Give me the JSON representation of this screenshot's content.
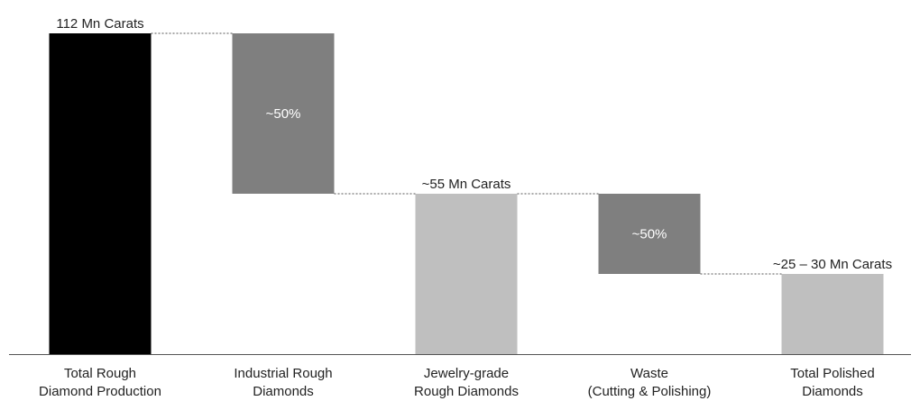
{
  "chart_data": {
    "type": "bar",
    "subtype": "waterfall",
    "categories": [
      [
        "Total Rough",
        "Diamond Production"
      ],
      [
        "Industrial Rough",
        "Diamonds"
      ],
      [
        "Jewelry-grade",
        "Rough Diamonds"
      ],
      [
        "Waste",
        "(Cutting & Polishing)"
      ],
      [
        "Total Polished",
        "Diamonds"
      ]
    ],
    "bars": [
      {
        "start": 0,
        "end": 112,
        "color": "#000000",
        "label": "112 Mn Carats",
        "label_position": "above"
      },
      {
        "start": 56,
        "end": 112,
        "color": "#7f7f7f",
        "label": "~50%",
        "label_position": "inside"
      },
      {
        "start": 0,
        "end": 56,
        "color": "#bfbfbf",
        "label": "~55 Mn Carats",
        "label_position": "above"
      },
      {
        "start": 28,
        "end": 56,
        "color": "#7f7f7f",
        "label": "~50%",
        "label_position": "inside"
      },
      {
        "start": 0,
        "end": 28,
        "color": "#bfbfbf",
        "label": "~25 – 30 Mn Carats",
        "label_position": "above"
      }
    ],
    "units": "Mn Carats",
    "ylim": [
      0,
      112
    ],
    "grid": false,
    "connectors": true
  }
}
